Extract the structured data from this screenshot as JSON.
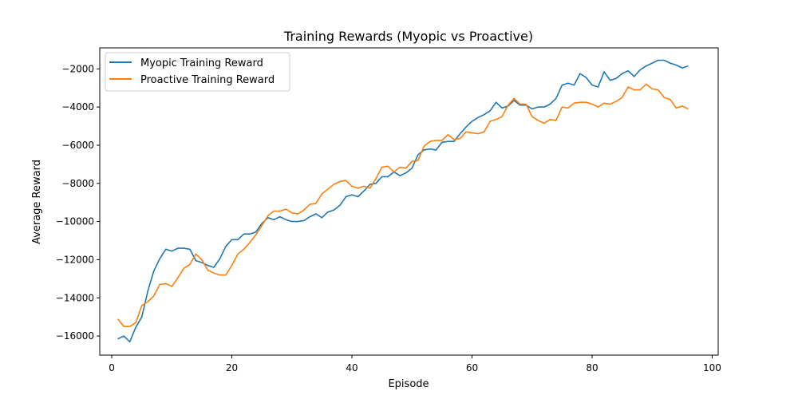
{
  "chart_data": {
    "type": "line",
    "title": "Training Rewards (Myopic vs Proactive)",
    "xlabel": "Episode",
    "ylabel": "Average Reward",
    "xlim": [
      -2,
      101
    ],
    "ylim": [
      -17000,
      -900
    ],
    "x_ticks": [
      0,
      20,
      40,
      60,
      80,
      100
    ],
    "x_tick_labels": [
      "0",
      "20",
      "40",
      "60",
      "80",
      "100"
    ],
    "y_ticks": [
      -16000,
      -14000,
      -12000,
      -10000,
      -8000,
      -6000,
      -4000,
      -2000
    ],
    "y_tick_labels": [
      "−16000",
      "−14000",
      "−12000",
      "−10000",
      "−8000",
      "−6000",
      "−4000",
      "−2000"
    ],
    "grid": false,
    "legend_position": "top-left",
    "x": [
      1,
      2,
      3,
      4,
      5,
      6,
      7,
      8,
      9,
      10,
      11,
      12,
      13,
      14,
      15,
      16,
      17,
      18,
      19,
      20,
      21,
      22,
      23,
      24,
      25,
      26,
      27,
      28,
      29,
      30,
      31,
      32,
      33,
      34,
      35,
      36,
      37,
      38,
      39,
      40,
      41,
      42,
      43,
      44,
      45,
      46,
      47,
      48,
      49,
      50,
      51,
      52,
      53,
      54,
      55,
      56,
      57,
      58,
      59,
      60,
      61,
      62,
      63,
      64,
      65,
      66,
      67,
      68,
      69,
      70,
      71,
      72,
      73,
      74,
      75,
      76,
      77,
      78,
      79,
      80,
      81,
      82,
      83,
      84,
      85,
      86,
      87,
      88,
      89,
      90,
      91,
      92,
      93,
      94,
      95,
      96
    ],
    "series": [
      {
        "name": "Myopic Training Reward",
        "color": "#1f77b4",
        "values": [
          -16150,
          -16000,
          -16300,
          -15550,
          -15000,
          -13650,
          -12600,
          -11950,
          -11450,
          -11550,
          -11400,
          -11400,
          -11450,
          -12050,
          -12150,
          -12300,
          -12400,
          -11950,
          -11300,
          -10950,
          -10950,
          -10650,
          -10650,
          -10550,
          -10100,
          -9800,
          -9900,
          -9750,
          -9900,
          -10000,
          -10000,
          -9950,
          -9750,
          -9600,
          -9800,
          -9500,
          -9400,
          -9150,
          -8700,
          -8600,
          -8700,
          -8400,
          -8050,
          -8000,
          -7650,
          -7650,
          -7400,
          -7600,
          -7450,
          -7200,
          -6500,
          -6250,
          -6200,
          -6250,
          -5850,
          -5800,
          -5800,
          -5400,
          -5050,
          -4750,
          -4550,
          -4400,
          -4200,
          -3750,
          -4050,
          -3950,
          -3650,
          -3900,
          -3900,
          -4100,
          -4000,
          -4000,
          -3850,
          -3550,
          -2850,
          -2750,
          -2850,
          -2250,
          -2450,
          -2850,
          -2950,
          -2150,
          -2600,
          -2500,
          -2250,
          -2100,
          -2400,
          -2050,
          -1850,
          -1700,
          -1550,
          -1550,
          -1700,
          -1800,
          -1950,
          -1850
        ]
      },
      {
        "name": "Proactive Training Reward",
        "color": "#ff7f0e",
        "values": [
          -15100,
          -15500,
          -15500,
          -15300,
          -14400,
          -14200,
          -13900,
          -13300,
          -13250,
          -13400,
          -12950,
          -12450,
          -12250,
          -11700,
          -12000,
          -12550,
          -12700,
          -12800,
          -12800,
          -12300,
          -11700,
          -11450,
          -11100,
          -10700,
          -10200,
          -9700,
          -9450,
          -9450,
          -9350,
          -9550,
          -9600,
          -9400,
          -9100,
          -9050,
          -8550,
          -8300,
          -8050,
          -7900,
          -7850,
          -8150,
          -8250,
          -8150,
          -8250,
          -7750,
          -7150,
          -7100,
          -7400,
          -7150,
          -7200,
          -6850,
          -6800,
          -6050,
          -5800,
          -5750,
          -5750,
          -5450,
          -5700,
          -5650,
          -5300,
          -5350,
          -5400,
          -5300,
          -4750,
          -4650,
          -4500,
          -3900,
          -3550,
          -3850,
          -3850,
          -4500,
          -4700,
          -4850,
          -4650,
          -4700,
          -4000,
          -4050,
          -3800,
          -3750,
          -3750,
          -3850,
          -4000,
          -3800,
          -3850,
          -3700,
          -3500,
          -2950,
          -3100,
          -3100,
          -2800,
          -3050,
          -3100,
          -3500,
          -3600,
          -4050,
          -3950,
          -4100
        ]
      }
    ]
  }
}
